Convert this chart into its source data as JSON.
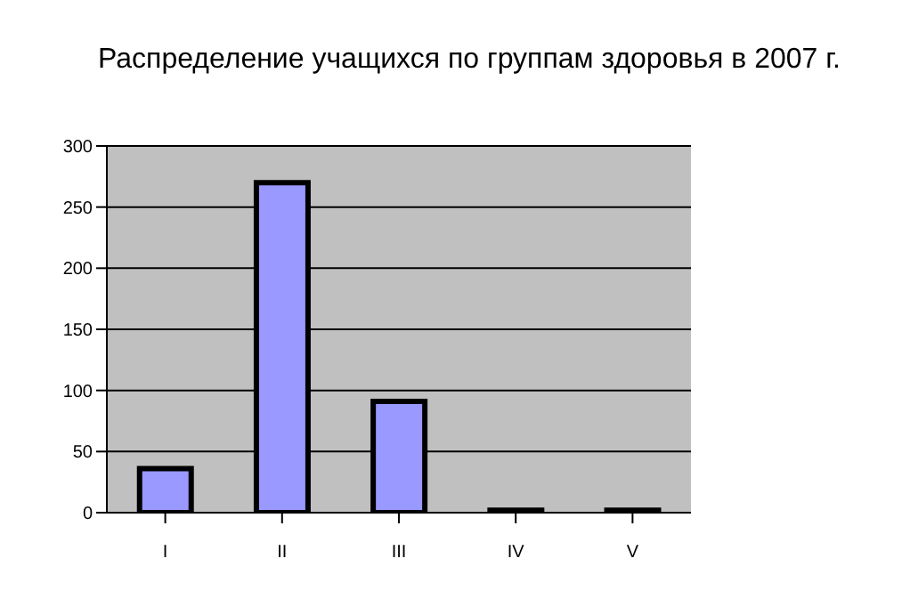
{
  "chart_data": {
    "type": "bar",
    "title": "Распределение учащихся по группам здоровья в 2007 г.",
    "categories": [
      "I",
      "II",
      "III",
      "IV",
      "V"
    ],
    "values": [
      36,
      270,
      91,
      2,
      2
    ],
    "color": "#9999ff",
    "ylim": [
      0,
      300
    ],
    "yticks": [
      0,
      50,
      100,
      150,
      200,
      250,
      300
    ],
    "grid": "y",
    "legend": false
  }
}
